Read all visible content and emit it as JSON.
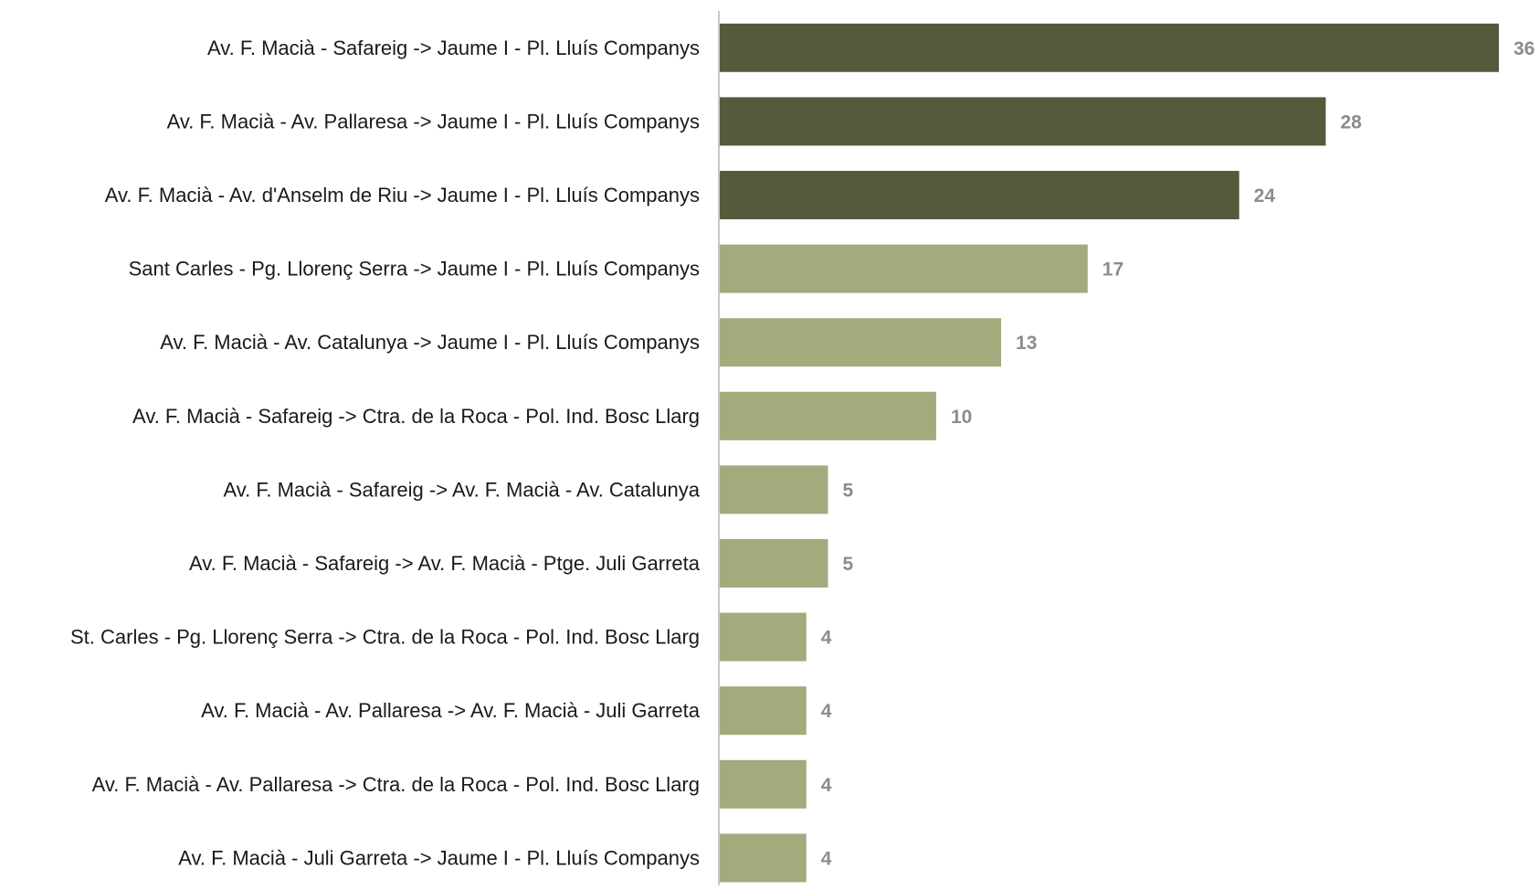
{
  "chart_data": {
    "type": "bar",
    "orientation": "horizontal",
    "title": "",
    "xlabel": "",
    "ylabel": "",
    "grid": false,
    "legend": "none",
    "xlim": [
      0,
      36
    ],
    "categories": [
      "Av. F. Macià - Safareig -> Jaume I - Pl. Lluís Companys",
      "Av. F. Macià - Av. Pallaresa -> Jaume I - Pl. Lluís Companys",
      "Av. F. Macià - Av. d'Anselm de Riu -> Jaume I - Pl. Lluís Companys",
      "Sant Carles - Pg. Llorenç Serra -> Jaume I - Pl. Lluís Companys",
      "Av. F. Macià - Av. Catalunya -> Jaume I - Pl. Lluís Companys",
      "Av. F. Macià - Safareig -> Ctra. de la Roca - Pol. Ind. Bosc Llarg",
      "Av. F. Macià - Safareig -> Av. F. Macià - Av. Catalunya",
      "Av. F. Macià - Safareig -> Av. F. Macià - Ptge. Juli Garreta",
      "St. Carles - Pg. Llorenç Serra -> Ctra. de la Roca - Pol. Ind. Bosc Llarg",
      "Av. F. Macià - Av. Pallaresa -> Av. F. Macià - Juli Garreta",
      "Av. F. Macià - Av. Pallaresa -> Ctra. de la Roca - Pol. Ind. Bosc Llarg",
      "Av. F. Macià - Juli Garreta -> Jaume I - Pl. Lluís Companys"
    ],
    "values": [
      36,
      28,
      24,
      17,
      13,
      10,
      5,
      5,
      4,
      4,
      4,
      4
    ],
    "value_labels": [
      "36",
      "28",
      "24",
      "17",
      "13",
      "10",
      "5",
      "5",
      "4",
      "4",
      "4",
      "4"
    ],
    "highlight": [
      true,
      true,
      true,
      false,
      false,
      false,
      false,
      false,
      false,
      false,
      false,
      false
    ],
    "colors": {
      "highlight": "#545b3c",
      "normal": "#a3ab7d",
      "axis": "#c8c8c8",
      "category_text": "#1a1a1a",
      "value_text": "#8c8c8c"
    }
  }
}
